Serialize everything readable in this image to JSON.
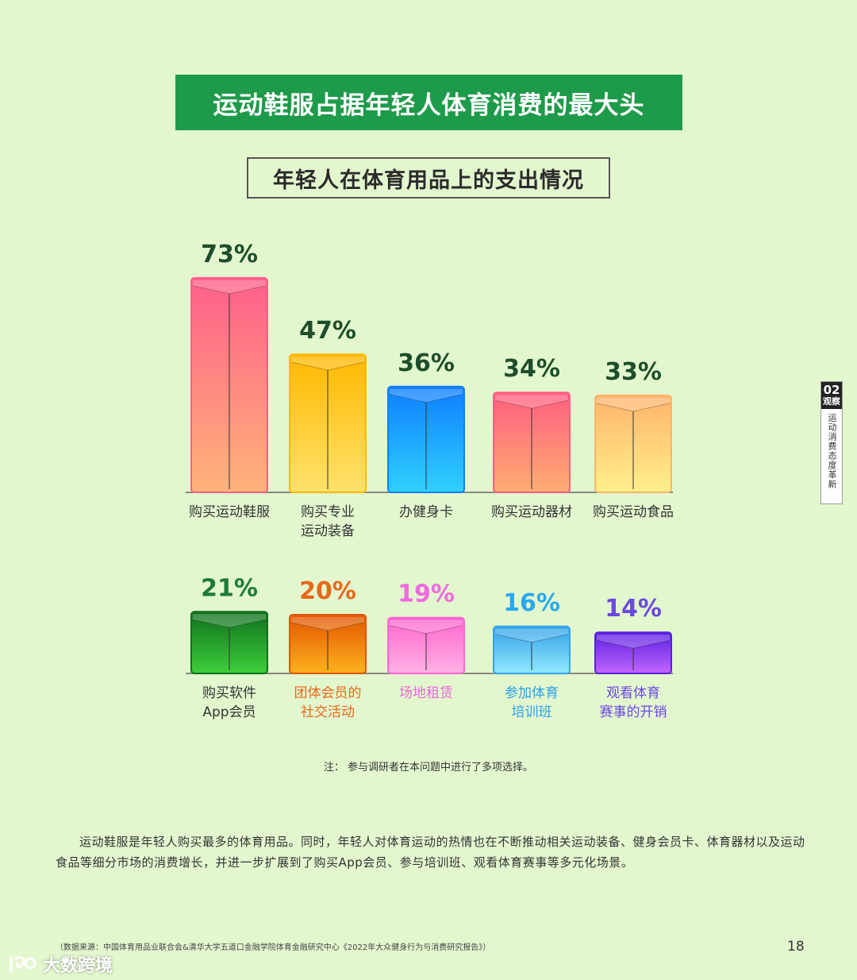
{
  "header": {
    "banner_title": "运动鞋服占据年轻人体育消费的最大头",
    "subtitle": "年轻人在体育用品上的支出情况"
  },
  "chart_data": [
    {
      "type": "bar",
      "title": "",
      "categories": [
        [
          "购买运动鞋服"
        ],
        [
          "购买专业",
          "运动装备"
        ],
        [
          "办健身卡"
        ],
        [
          "购买运动器材"
        ],
        [
          "购买运动食品"
        ]
      ],
      "values": [
        73,
        47,
        36,
        34,
        33
      ],
      "value_labels": [
        "73%",
        "47%",
        "36%",
        "34%",
        "33%"
      ],
      "label_colors": [
        "#333333",
        "#333333",
        "#333333",
        "#333333",
        "#333333"
      ],
      "value_label_colors": [
        "#1d4d2a",
        "#1d4d2a",
        "#1d4d2a",
        "#1d4d2a",
        "#1d4d2a"
      ],
      "bar_colors": [
        [
          "#ff5f8a",
          "#ffb37a"
        ],
        [
          "#ffb800",
          "#ffe26b"
        ],
        [
          "#0f7fff",
          "#2fd0ff"
        ],
        [
          "#ff5f7f",
          "#ffad73"
        ],
        [
          "#ffb36b",
          "#fff08a"
        ]
      ],
      "unit": "%"
    },
    {
      "type": "bar",
      "title": "",
      "categories": [
        [
          "购买软件",
          "App会员"
        ],
        [
          "团体会员的",
          "社交活动"
        ],
        [
          "场地租赁"
        ],
        [
          "参加体育",
          "培训班"
        ],
        [
          "观看体育",
          "赛事的开销"
        ]
      ],
      "values": [
        21,
        20,
        19,
        16,
        14
      ],
      "value_labels": [
        "21%",
        "20%",
        "19%",
        "16%",
        "14%"
      ],
      "label_colors": [
        "#333333",
        "#e8681a",
        "#e86ad8",
        "#2a9fe8",
        "#6b48e0"
      ],
      "value_label_colors": [
        "#1e7a3a",
        "#e8681a",
        "#f06ae0",
        "#29a8ee",
        "#6b48e0"
      ],
      "bar_colors": [
        [
          "#10701f",
          "#3fcf3a"
        ],
        [
          "#e25500",
          "#ffb21e"
        ],
        [
          "#ff66d0",
          "#ffb2e4"
        ],
        [
          "#35a3e8",
          "#8fe9ff"
        ],
        [
          "#5a1fe0",
          "#c266ff"
        ]
      ],
      "unit": "%"
    }
  ],
  "side_tab": {
    "number": "02",
    "label": "观察",
    "text": "运动消费态度革新"
  },
  "note": "注：  参与调研者在本问题中进行了多项选择。",
  "body_text": "运动鞋服是年轻人购买最多的体育用品。同时，年轻人对体育运动的热情也在不断推动相关运动装备、健身会员卡、体育器材以及运动食品等细分市场的消费增长，并进一步扩展到了购买App会员、参与培训班、观看体育赛事等多元化场景。",
  "source": "（数据来源：中国体育用品业联合会&清华大学五道口金融学院体育金融研究中心《2022年大众健身行为与消费研究报告》）",
  "page_number": "18",
  "watermark": "大数跨境"
}
